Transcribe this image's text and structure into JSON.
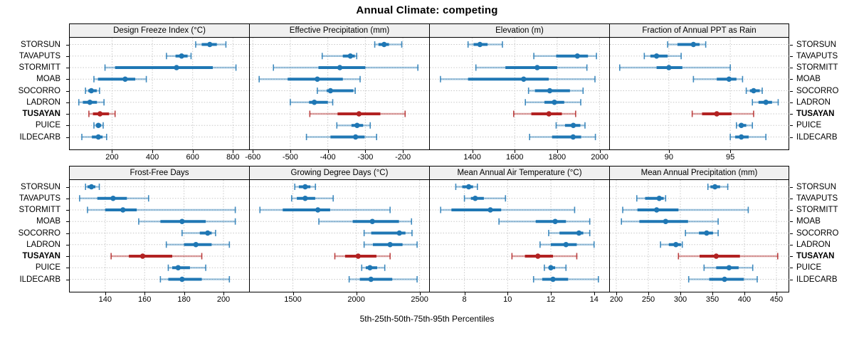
{
  "chart_data": {
    "type": "dotplot-percentiles",
    "title": "Annual Climate: competing",
    "caption": "5th-25th-50th-75th-95th Percentiles",
    "percentile_labels": [
      "5th",
      "25th",
      "50th",
      "75th",
      "95th"
    ],
    "sites": [
      "STORSUN",
      "TAVAPUTS",
      "STORMITT",
      "MOAB",
      "SOCORRO",
      "LADRON",
      "TUSAYAN",
      "PUICE",
      "ILDECARB"
    ],
    "highlight_site": "TUSAYAN",
    "colors": {
      "normal": "#1f77b4",
      "highlight": "#b22222",
      "grid": "#c8c8c8",
      "header_bg": "#f0f0f0"
    },
    "layout": {
      "grid_on": true,
      "rows": 2,
      "cols": 4,
      "site_labels_left": true,
      "site_labels_right": true
    },
    "panels": [
      {
        "title": "Design Freeze Index (°C)",
        "ticks": [
          200,
          400,
          600,
          800
        ],
        "xlim": [
          -10,
          880
        ],
        "values": [
          [
            615,
            645,
            685,
            720,
            765
          ],
          [
            470,
            515,
            545,
            575,
            592
          ],
          [
            165,
            215,
            520,
            700,
            815
          ],
          [
            110,
            130,
            265,
            315,
            370
          ],
          [
            68,
            82,
            97,
            124,
            138
          ],
          [
            35,
            55,
            90,
            125,
            160
          ],
          [
            85,
            105,
            140,
            185,
            215
          ],
          [
            110,
            120,
            132,
            146,
            156
          ],
          [
            50,
            100,
            132,
            153,
            173
          ]
        ]
      },
      {
        "title": "Effective Precipitation (mm)",
        "ticks": [
          -600,
          -500,
          -400,
          -300,
          -200
        ],
        "xlim": [
          -608,
          -130
        ],
        "values": [
          [
            -275,
            -265,
            -250,
            -237,
            -203
          ],
          [
            -415,
            -360,
            -340,
            -328,
            -323
          ],
          [
            -545,
            -425,
            -368,
            -300,
            -160
          ],
          [
            -583,
            -507,
            -428,
            -360,
            -314
          ],
          [
            -428,
            -403,
            -393,
            -332,
            -327
          ],
          [
            -500,
            -450,
            -436,
            -400,
            -387
          ],
          [
            -448,
            -374,
            -317,
            -260,
            -194
          ],
          [
            -376,
            -337,
            -322,
            -306,
            -287
          ],
          [
            -457,
            -393,
            -326,
            -302,
            -270
          ]
        ]
      },
      {
        "title": "Elevation (m)",
        "ticks": [
          1400,
          1600,
          1800,
          2000
        ],
        "xlim": [
          1200,
          2045
        ],
        "values": [
          [
            1380,
            1406,
            1436,
            1472,
            1542
          ],
          [
            1690,
            1795,
            1895,
            1945,
            1985
          ],
          [
            1417,
            1556,
            1706,
            1800,
            1940
          ],
          [
            1250,
            1380,
            1642,
            1760,
            1978
          ],
          [
            1665,
            1695,
            1765,
            1860,
            1922
          ],
          [
            1650,
            1740,
            1787,
            1833,
            1911
          ],
          [
            1595,
            1678,
            1761,
            1822,
            1887
          ],
          [
            1795,
            1837,
            1876,
            1909,
            1931
          ],
          [
            1670,
            1776,
            1875,
            1913,
            1980
          ]
        ]
      },
      {
        "title": "Fraction of Annual PPT as Rain",
        "ticks": [
          90,
          95
        ],
        "xlim": [
          85.2,
          99.8
        ],
        "values": [
          [
            89.9,
            90.7,
            92.0,
            92.5,
            93.0
          ],
          [
            88.0,
            88.5,
            89.0,
            89.9,
            91.0
          ],
          [
            86.0,
            89.0,
            90.0,
            91.1,
            95.0
          ],
          [
            92.0,
            93.9,
            94.9,
            95.5,
            96.0
          ],
          [
            96.3,
            96.6,
            96.9,
            97.4,
            97.6
          ],
          [
            96.8,
            97.3,
            97.9,
            98.4,
            98.9
          ],
          [
            91.9,
            92.7,
            93.9,
            95.1,
            96.9
          ],
          [
            95.5,
            95.7,
            95.9,
            96.3,
            96.8
          ],
          [
            95.0,
            95.4,
            95.9,
            96.5,
            97.9
          ]
        ]
      },
      {
        "title": "Frost-Free Days",
        "ticks": [
          140,
          160,
          180,
          200
        ],
        "xlim": [
          122,
          213
        ],
        "values": [
          [
            130,
            131,
            133,
            135,
            137
          ],
          [
            127,
            136,
            144,
            151,
            162
          ],
          [
            131,
            140,
            149,
            156,
            206
          ],
          [
            157,
            168,
            179,
            191,
            206
          ],
          [
            179,
            188,
            192,
            194,
            196
          ],
          [
            171,
            180,
            186,
            194,
            203
          ],
          [
            143,
            152,
            159,
            174,
            189
          ],
          [
            172,
            174,
            177,
            183,
            191
          ],
          [
            168,
            172,
            179,
            189,
            203
          ]
        ]
      },
      {
        "title": "Growing Degree Days (°C)",
        "ticks": [
          1500,
          2000,
          2500
        ],
        "xlim": [
          1160,
          2575
        ],
        "values": [
          [
            1515,
            1547,
            1597,
            1638,
            1678
          ],
          [
            1490,
            1531,
            1597,
            1676,
            1818
          ],
          [
            1240,
            1420,
            1697,
            1794,
            2267
          ],
          [
            1705,
            1972,
            2127,
            2337,
            2436
          ],
          [
            2062,
            2118,
            2340,
            2388,
            2440
          ],
          [
            2062,
            2131,
            2267,
            2365,
            2480
          ],
          [
            1831,
            1912,
            2015,
            2159,
            2267
          ],
          [
            2043,
            2075,
            2108,
            2165,
            2225
          ],
          [
            1944,
            2028,
            2116,
            2284,
            2480
          ]
        ]
      },
      {
        "title": "Mean Annual Air Temperature (°C)",
        "ticks": [
          8,
          10,
          12,
          14
        ],
        "xlim": [
          6.4,
          14.7
        ],
        "values": [
          [
            7.6,
            7.9,
            8.2,
            8.4,
            8.6
          ],
          [
            8.0,
            8.3,
            8.5,
            8.9,
            9.9
          ],
          [
            6.9,
            7.4,
            9.2,
            9.7,
            13.1
          ],
          [
            9.6,
            11.3,
            12.2,
            12.7,
            13.8
          ],
          [
            11.9,
            12.4,
            13.3,
            13.5,
            13.8
          ],
          [
            11.5,
            12.0,
            12.7,
            13.2,
            14.0
          ],
          [
            10.2,
            10.8,
            11.4,
            12.1,
            13.2
          ],
          [
            11.7,
            11.9,
            12.0,
            12.2,
            12.7
          ],
          [
            11.2,
            11.6,
            12.1,
            12.8,
            14.2
          ]
        ]
      },
      {
        "title": "Mean Annual Precipitation (mm)",
        "ticks": [
          200,
          250,
          300,
          350,
          400,
          450
        ],
        "xlim": [
          190,
          470
        ],
        "values": [
          [
            343,
            347,
            354,
            362,
            374
          ],
          [
            232,
            245,
            267,
            274,
            277
          ],
          [
            210,
            233,
            263,
            297,
            406
          ],
          [
            208,
            236,
            277,
            312,
            359
          ],
          [
            308,
            329,
            341,
            351,
            359
          ],
          [
            269,
            282,
            293,
            301,
            303
          ],
          [
            297,
            330,
            356,
            393,
            452
          ],
          [
            337,
            356,
            376,
            391,
            413
          ],
          [
            313,
            345,
            369,
            399,
            420
          ]
        ]
      }
    ]
  }
}
